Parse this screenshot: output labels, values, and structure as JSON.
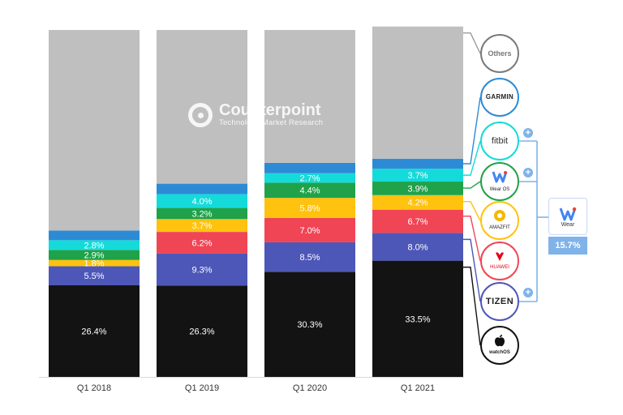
{
  "chart_data": {
    "type": "bar",
    "stacked": true,
    "categories": [
      "Q1 2018",
      "Q1 2019",
      "Q1 2020",
      "Q1 2021"
    ],
    "ylim": [
      0,
      100
    ],
    "series": [
      {
        "name": "watchOS",
        "color": "#131313",
        "values": [
          26.4,
          26.3,
          30.3,
          33.5
        ],
        "labels": [
          "26.4%",
          "26.3%",
          "30.3%",
          "33.5%"
        ],
        "label_color": "#ffffff"
      },
      {
        "name": "Tizen",
        "color": "#4d57b8",
        "values": [
          5.5,
          9.3,
          8.5,
          8.0
        ],
        "labels": [
          "5.5%",
          "9.3%",
          "8.5%",
          "8.0%"
        ],
        "label_color": "#ffffff"
      },
      {
        "name": "Huawei",
        "color": "#f04555",
        "values": [
          0,
          6.2,
          7.0,
          6.7
        ],
        "labels": [
          "",
          "6.2%",
          "7.0%",
          "6.7%"
        ],
        "label_color": "#ffffff"
      },
      {
        "name": "Amazfit",
        "color": "#ffc20e",
        "values": [
          1.8,
          3.7,
          5.8,
          4.2
        ],
        "labels": [
          "1.8%",
          "3.7%",
          "5.8%",
          "4.2%"
        ],
        "label_color": "#ffffff"
      },
      {
        "name": "Wear OS",
        "color": "#1fa24a",
        "values": [
          2.9,
          3.2,
          4.4,
          3.9
        ],
        "labels": [
          "2.9%",
          "3.2%",
          "4.4%",
          "3.9%"
        ],
        "label_color": "#ffffff"
      },
      {
        "name": "fitbit",
        "color": "#15dada",
        "values": [
          2.8,
          4.0,
          2.7,
          3.7
        ],
        "labels": [
          "2.8%",
          "4.0%",
          "2.7%",
          "3.7%"
        ],
        "label_color": "#ffffff"
      },
      {
        "name": "Garmin",
        "color": "#2d8bd5",
        "values": [
          2.8,
          3.0,
          3.0,
          2.9
        ],
        "labels": [
          "",
          "",
          "",
          ""
        ],
        "label_color": "#ffffff"
      },
      {
        "name": "Others",
        "color": "#bfbfbf",
        "values": [
          57.8,
          44.3,
          38.3,
          38.1
        ],
        "labels": [
          "",
          "",
          "",
          ""
        ],
        "label_color": "#ffffff"
      }
    ]
  },
  "watermark": {
    "title": "Counterpoint",
    "subtitle": "Technology Market Research"
  },
  "legend": {
    "others": "Others",
    "garmin": "GARMIN",
    "fitbit": "fitbit",
    "wearos": "Wear OS",
    "amazfit": "AMAZFIT",
    "huawei": "HUAWEI",
    "tizen": "TIZEN",
    "watchos": "watchOS",
    "plus_sign": "+"
  },
  "wear_group": {
    "label": "Wear",
    "total": "15.7%",
    "color": "#7fb3ea"
  }
}
